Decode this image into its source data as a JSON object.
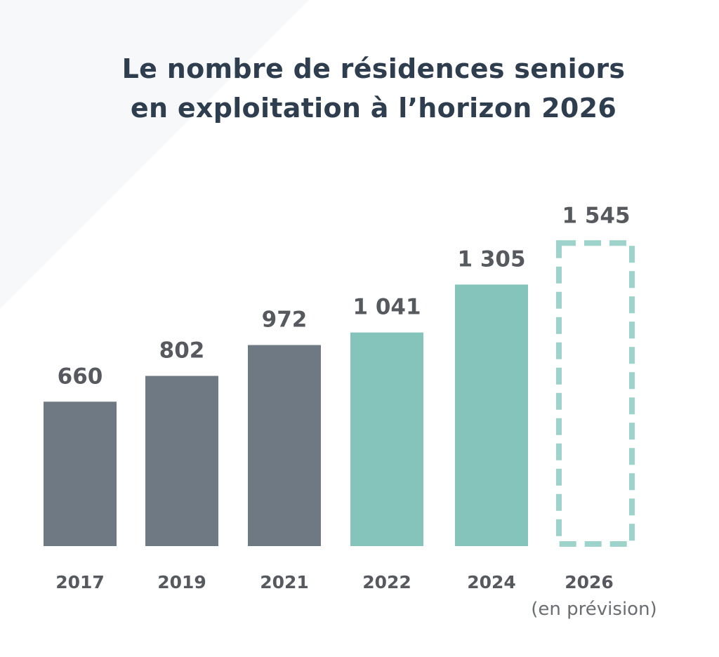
{
  "chart_data": {
    "type": "bar",
    "title_line1": "Le nombre de résidences seniors",
    "title_line2": "en exploitation à l’horizon 2026",
    "categories": [
      "2017",
      "2019",
      "2021",
      "2022",
      "2024",
      "2026"
    ],
    "values": [
      660,
      802,
      972,
      1041,
      1305,
      1545
    ],
    "value_labels": [
      "660",
      "802",
      "972",
      "1 041",
      "1 305",
      "1 545"
    ],
    "forecast_note": "(en prévision)",
    "forecast_index": 5,
    "xlabel": "",
    "ylabel": "",
    "grid": false,
    "colors": {
      "past": "#6f7984",
      "recent": "#84c4ba",
      "forecast": "#9dd3ca",
      "title": "#2f3e4f",
      "labels": "#565a5f"
    },
    "bar_colors": [
      "past",
      "past",
      "past",
      "recent",
      "recent",
      "forecast"
    ]
  }
}
